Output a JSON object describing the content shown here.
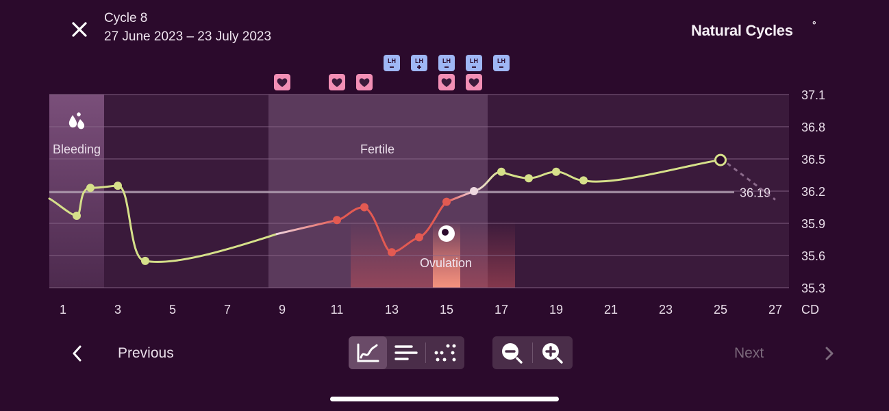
{
  "header": {
    "cycle_title": "Cycle 8",
    "cycle_dates": "27 June 2023 – 23 July 2023",
    "brand": "Natural Cycles",
    "brand_mark": "°"
  },
  "colors": {
    "background": "#2b0a2c",
    "line_low": "#d6e08a",
    "line_fertile": "#e35a52",
    "lh_badge": "#9fb7f5",
    "sex_badge": "#f28fb5",
    "ovulation": "#f08a7c"
  },
  "chart_data": {
    "type": "line",
    "x_label": "CD",
    "ylim": [
      35.3,
      37.1
    ],
    "xlim": [
      1,
      27
    ],
    "x_ticks": [
      1,
      3,
      5,
      7,
      9,
      11,
      13,
      15,
      17,
      19,
      21,
      23,
      25,
      27
    ],
    "y_ticks": [
      37.1,
      36.8,
      36.5,
      36.2,
      35.9,
      35.6,
      35.3
    ],
    "cover_line_value": 36.19,
    "cover_line_label": "36.19",
    "series": [
      {
        "points": [
          {
            "cd": 1.5,
            "temp": 35.97,
            "color": "green"
          },
          {
            "cd": 2,
            "temp": 36.23,
            "color": "green"
          },
          {
            "cd": 3,
            "temp": 36.25,
            "color": "green"
          },
          {
            "cd": 4,
            "temp": 35.55,
            "color": "green"
          },
          {
            "cd": 11,
            "temp": 35.93,
            "color": "red"
          },
          {
            "cd": 12,
            "temp": 36.05,
            "color": "red"
          },
          {
            "cd": 13,
            "temp": 35.63,
            "color": "red"
          },
          {
            "cd": 14,
            "temp": 35.77,
            "color": "red"
          },
          {
            "cd": 15,
            "temp": 36.1,
            "color": "red"
          },
          {
            "cd": 16,
            "temp": 36.2,
            "color": "pale"
          },
          {
            "cd": 17,
            "temp": 36.38,
            "color": "green"
          },
          {
            "cd": 18,
            "temp": 36.32,
            "color": "green"
          },
          {
            "cd": 19,
            "temp": 36.38,
            "color": "green"
          },
          {
            "cd": 20,
            "temp": 36.3,
            "color": "green"
          },
          {
            "cd": 25,
            "temp": 36.49,
            "color": "green",
            "open": true
          }
        ],
        "prediction": [
          {
            "cd": 25,
            "temp": 36.49
          },
          {
            "cd": 27,
            "temp": 36.12
          }
        ]
      }
    ],
    "phases": [
      {
        "label": "Bleeding",
        "start_cd": 1,
        "end_cd": 2.5
      },
      {
        "label": "Fertile",
        "start_cd": 9,
        "end_cd": 16.5
      },
      {
        "label": "Ovulation",
        "cd": 15
      }
    ],
    "lh_tests": [
      {
        "cd": 13,
        "result": "negative",
        "label": "LH"
      },
      {
        "cd": 14,
        "result": "positive",
        "label": "LH"
      },
      {
        "cd": 15,
        "result": "negative",
        "label": "LH"
      },
      {
        "cd": 16,
        "result": "negative",
        "label": "LH"
      },
      {
        "cd": 17,
        "result": "negative",
        "label": "LH"
      }
    ],
    "sex_days": [
      9,
      11,
      12,
      15,
      16
    ],
    "x_tick_labels": [
      "1",
      "3",
      "5",
      "7",
      "9",
      "11",
      "13",
      "15",
      "17",
      "19",
      "21",
      "23",
      "25",
      "27"
    ],
    "y_tick_labels": [
      "37.1",
      "36.8",
      "36.5",
      "36.2",
      "35.9",
      "35.6",
      "35.3"
    ]
  },
  "footer": {
    "previous_label": "Previous",
    "next_label": "Next"
  },
  "icons": {
    "close": "close-icon",
    "graph_view": "line-graph-icon",
    "list_view": "bars-icon",
    "scatter_view": "scatter-icon",
    "zoom_out": "zoom-out-icon",
    "zoom_in": "zoom-in-icon"
  }
}
